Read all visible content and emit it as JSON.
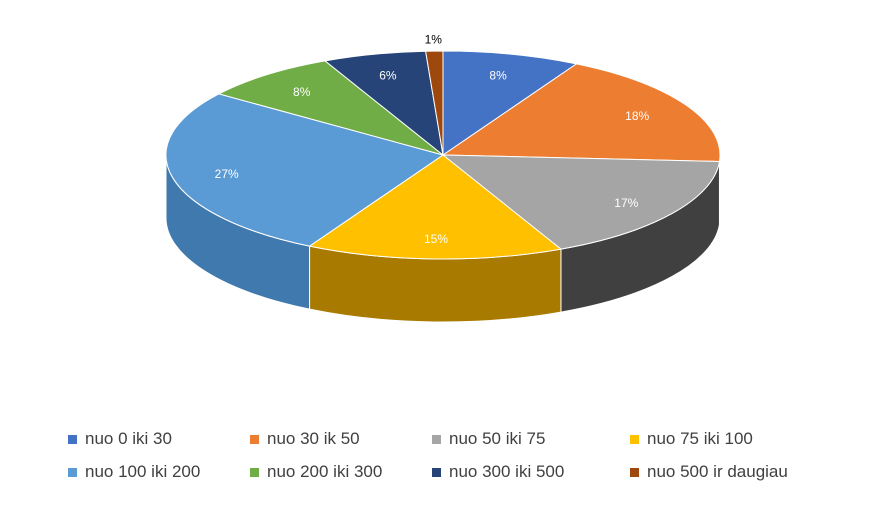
{
  "chart_data": {
    "type": "pie",
    "style": "3d",
    "title": "",
    "slices": [
      {
        "name": "nuo 0 iki 30",
        "value": 8,
        "label": "8%",
        "color": "#4472C4",
        "side_color": "#2F5597",
        "label_color": "#ffffff"
      },
      {
        "name": "nuo 30 ik 50",
        "value": 18,
        "label": "18%",
        "color": "#ED7D31",
        "side_color": "#B55A1E",
        "label_color": "#ffffff"
      },
      {
        "name": "nuo 50 iki 75",
        "value": 17,
        "label": "17%",
        "color": "#A5A5A5",
        "side_color": "#404040",
        "label_color": "#ffffff"
      },
      {
        "name": "nuo 75 iki 100",
        "value": 15,
        "label": "15%",
        "color": "#FFC000",
        "side_color": "#A87A00",
        "label_color": "#ffffff"
      },
      {
        "name": "nuo 100 iki 200",
        "value": 27,
        "label": "27%",
        "color": "#5B9BD5",
        "side_color": "#3F79AE",
        "label_color": "#ffffff"
      },
      {
        "name": "nuo 200 iki 300",
        "value": 8,
        "label": "8%",
        "color": "#70AD47",
        "side_color": "#4E7D31",
        "label_color": "#ffffff"
      },
      {
        "name": "nuo 300 iki 500",
        "value": 6,
        "label": "6%",
        "color": "#264478",
        "side_color": "#18305A",
        "label_color": "#ffffff"
      },
      {
        "name": "nuo 500 ir daugiau",
        "value": 1,
        "label": "1%",
        "color": "#9E480E",
        "side_color": "#6E3209",
        "label_color": "#000000"
      }
    ],
    "legend_placement": "bottom"
  }
}
